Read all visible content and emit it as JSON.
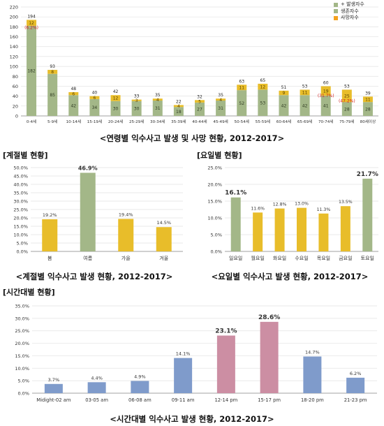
{
  "colors": {
    "green": "#a3b788",
    "gold": "#e8bd2a",
    "orange": "#f4a11d",
    "blue": "#7f9bcb",
    "pink": "#cc8ea3",
    "grid": "#e2e2e2",
    "red": "#d02020"
  },
  "headings": {
    "season": "[계절별 현황]",
    "weekday": "[요일별 현황]",
    "time": "[시간대별 현황]"
  },
  "captions": {
    "age": "<연령별 익수사고 발생 및 사망 현황, 2012-2017>",
    "season": "<계절별 익수사고 발생 현황, 2012-2017>",
    "weekday": "<요일별 익수사고 발생 현황, 2012-2017>",
    "time": "<시간대별 익수사고 발생 현황, 2012-2017>"
  },
  "legend": {
    "items": [
      {
        "label": "+ 발생자수",
        "color": "#a3b788"
      },
      {
        "label": "생존자수",
        "color": "#a3b788"
      },
      {
        "label": "사망자수",
        "color": "#f4a11d"
      }
    ]
  },
  "chart_data": [
    {
      "type": "bar",
      "stacked": true,
      "categories": [
        "0-4세",
        "5-9세",
        "10-14세",
        "15-19세",
        "20-24세",
        "25-29세",
        "30-34세",
        "35-39세",
        "40-44세",
        "45-49세",
        "50-54세",
        "55-59세",
        "60-64세",
        "65-69세",
        "70-74세",
        "75-79세",
        "80세이상"
      ],
      "series": [
        {
          "name": "생존자수",
          "values": [
            182,
            85,
            42,
            34,
            30,
            30,
            31,
            18,
            27,
            31,
            52,
            53,
            42,
            42,
            41,
            28,
            28
          ]
        },
        {
          "name": "사망자수",
          "values": [
            12,
            8,
            6,
            6,
            12,
            3,
            4,
            4,
            5,
            4,
            11,
            12,
            9,
            11,
            19,
            25,
            11
          ]
        }
      ],
      "totals": [
        194,
        93,
        48,
        40,
        42,
        33,
        35,
        22,
        32,
        35,
        63,
        65,
        51,
        53,
        60,
        53,
        39
      ],
      "death_rates": {
        "0": "(6.2%)",
        "14": "(31.7%)",
        "15": "(47.2%)"
      },
      "yticks": [
        0,
        20,
        40,
        60,
        80,
        100,
        120,
        140,
        160,
        180,
        200,
        220
      ],
      "ylim": [
        0,
        220
      ],
      "grid": true,
      "legend": "top-right"
    },
    {
      "type": "bar",
      "categories": [
        "봄",
        "여름",
        "가을",
        "겨울"
      ],
      "values": [
        19.2,
        46.9,
        19.4,
        14.5
      ],
      "labels": [
        "19.2%",
        "46.9%",
        "19.4%",
        "14.5%"
      ],
      "highlight": [
        false,
        true,
        false,
        false
      ],
      "ylim": [
        0,
        50
      ],
      "yticks": [
        "0.0%",
        "5.0%",
        "10.0%",
        "15.0%",
        "20.0%",
        "25.0%",
        "30.0%",
        "35.0%",
        "40.0%",
        "45.0%",
        "50.0%"
      ],
      "grid": true
    },
    {
      "type": "bar",
      "categories": [
        "일요일",
        "월요일",
        "화요일",
        "수요일",
        "목요일",
        "금요일",
        "토요일"
      ],
      "values": [
        16.1,
        11.6,
        12.8,
        13.0,
        11.3,
        13.5,
        21.7
      ],
      "labels": [
        "16.1%",
        "11.6%",
        "12.8%",
        "13.0%",
        "11.3%",
        "13.5%",
        "21.7%"
      ],
      "highlight": [
        true,
        false,
        false,
        false,
        false,
        false,
        true
      ],
      "ylim": [
        0,
        25
      ],
      "yticks": [
        "0.0%",
        "5.0%",
        "10.0%",
        "15.0%",
        "20.0%",
        "25.0%"
      ],
      "grid": true
    },
    {
      "type": "bar",
      "categories": [
        "Midight-02 am",
        "03-05 am",
        "06-08 am",
        "09-11 am",
        "12-14 pm",
        "15-17 pm",
        "18-20 pm",
        "21-23 pm"
      ],
      "values": [
        3.7,
        4.4,
        4.9,
        14.1,
        23.1,
        28.6,
        14.7,
        6.2
      ],
      "labels": [
        "3.7%",
        "4.4%",
        "4.9%",
        "14.1%",
        "23.1%",
        "28.6%",
        "14.7%",
        "6.2%"
      ],
      "highlight": [
        false,
        false,
        false,
        false,
        true,
        true,
        false,
        false
      ],
      "ylim": [
        0,
        35
      ],
      "yticks": [
        "0.0%",
        "5.0%",
        "10.0%",
        "15.0%",
        "20.0%",
        "25.0%",
        "30.0%",
        "35.0%"
      ],
      "grid": true
    }
  ]
}
